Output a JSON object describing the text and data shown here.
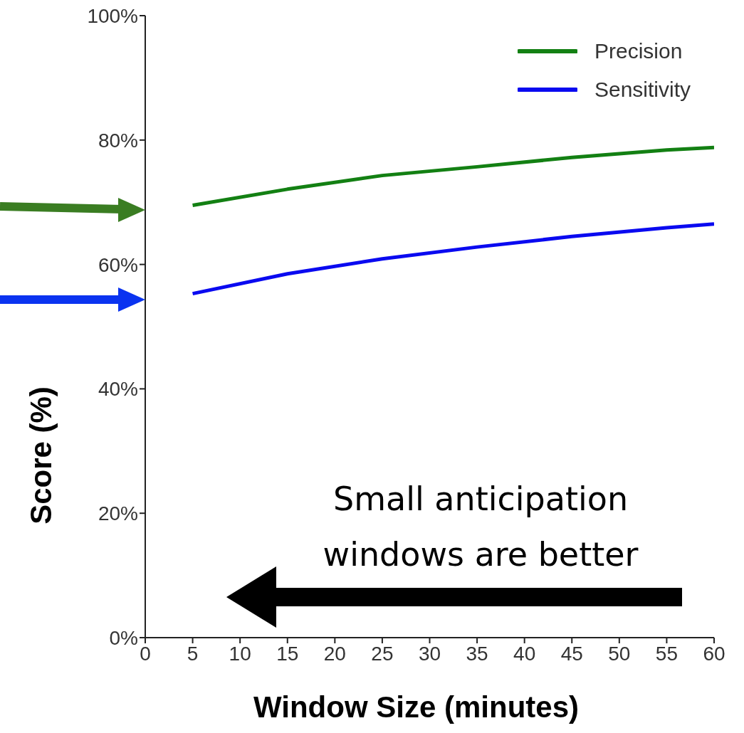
{
  "chart_data": {
    "type": "line",
    "xlabel": "Window Size (minutes)",
    "ylabel": "Score (%)",
    "x": [
      5,
      15,
      25,
      35,
      45,
      55,
      60
    ],
    "series": [
      {
        "name": "Precision",
        "color": "#138013",
        "values": [
          69.5,
          72.1,
          74.3,
          75.7,
          77.2,
          78.4,
          78.8
        ]
      },
      {
        "name": "Sensitivity",
        "color": "#0a0af0",
        "values": [
          55.3,
          58.5,
          60.9,
          62.8,
          64.5,
          65.9,
          66.5
        ]
      }
    ],
    "xlim": [
      0,
      60
    ],
    "xticks": [
      0,
      5,
      10,
      15,
      20,
      25,
      30,
      35,
      40,
      45,
      50,
      55,
      60
    ],
    "ylim": [
      0,
      100
    ],
    "yticks": [
      {
        "value": 0,
        "label": "0%"
      },
      {
        "value": 20,
        "label": "20%"
      },
      {
        "value": 40,
        "label": "40%"
      },
      {
        "value": 60,
        "label": "60%"
      },
      {
        "value": 80,
        "label": "80%"
      },
      {
        "value": 100,
        "label": "100%"
      }
    ],
    "annotations": [
      "Small anticipation windows are better"
    ],
    "grid": false,
    "legend": "top right",
    "marker": "none",
    "line_style": "solid"
  }
}
